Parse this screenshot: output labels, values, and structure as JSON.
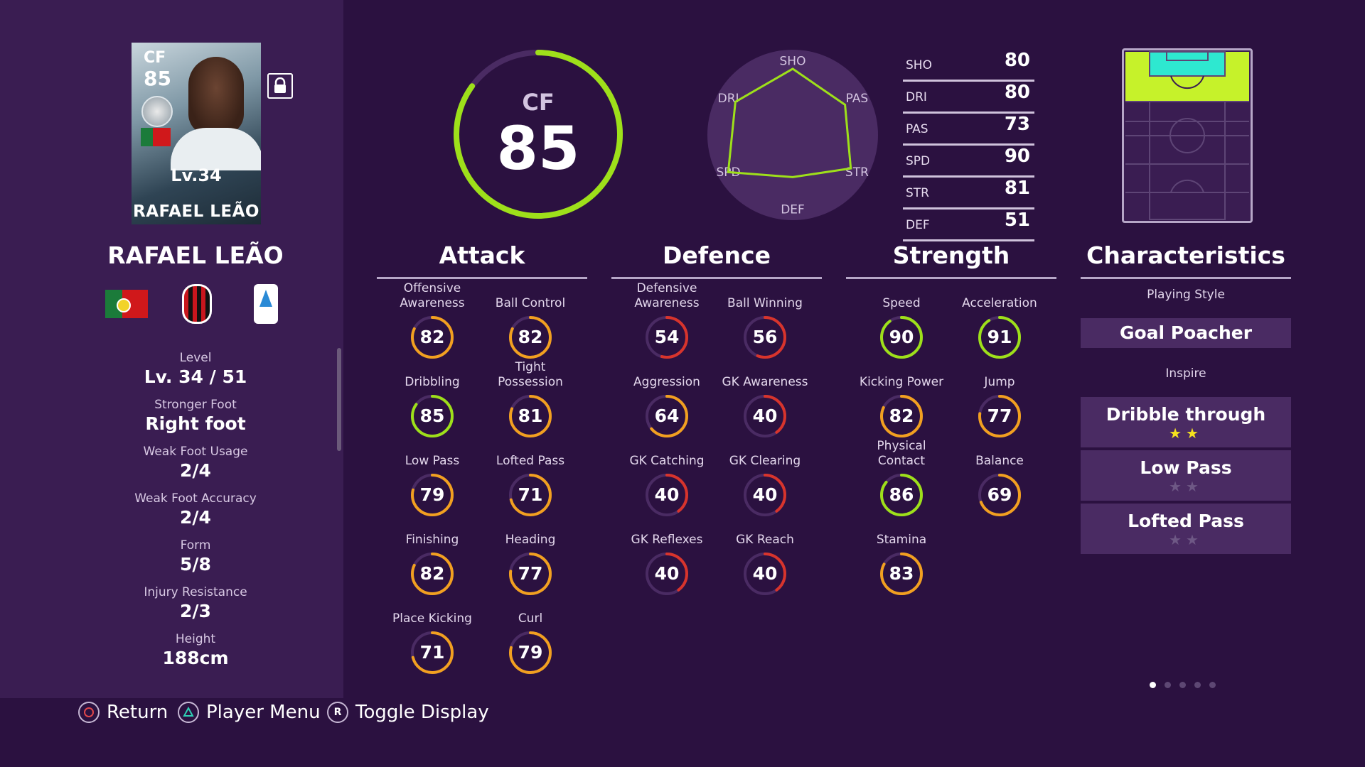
{
  "card": {
    "position": "CF",
    "overall": "85",
    "level": "Lv.34",
    "name": "RAFAEL LEÃO"
  },
  "player": {
    "name": "RAFAEL LEÃO"
  },
  "info": [
    {
      "label": "Level",
      "value": "Lv. 34 / 51"
    },
    {
      "label": "Stronger Foot",
      "value": "Right foot"
    },
    {
      "label": "Weak Foot Usage",
      "value": "2/4"
    },
    {
      "label": "Weak Foot Accuracy",
      "value": "2/4"
    },
    {
      "label": "Form",
      "value": "5/8"
    },
    {
      "label": "Injury Resistance",
      "value": "2/3"
    },
    {
      "label": "Height",
      "value": "188cm"
    }
  ],
  "overall_ring": {
    "position": "CF",
    "value": "85"
  },
  "radar": {
    "labels": [
      "SHO",
      "PAS",
      "STR",
      "DEF",
      "SPD",
      "DRI"
    ],
    "values": [
      80,
      73,
      81,
      51,
      90,
      80
    ]
  },
  "summary": [
    {
      "label": "SHO",
      "value": "80"
    },
    {
      "label": "DRI",
      "value": "80"
    },
    {
      "label": "PAS",
      "value": "73"
    },
    {
      "label": "SPD",
      "value": "90"
    },
    {
      "label": "STR",
      "value": "81"
    },
    {
      "label": "DEF",
      "value": "51"
    }
  ],
  "sections": {
    "attack": "Attack",
    "defence": "Defence",
    "strength": "Strength",
    "characteristics": "Characteristics"
  },
  "attack": [
    {
      "label": "Offensive Awareness",
      "value": 82
    },
    {
      "label": "Ball Control",
      "value": 82
    },
    {
      "label": "Dribbling",
      "value": 85
    },
    {
      "label": "Tight Possession",
      "value": 81
    },
    {
      "label": "Low Pass",
      "value": 79
    },
    {
      "label": "Lofted Pass",
      "value": 71
    },
    {
      "label": "Finishing",
      "value": 82
    },
    {
      "label": "Heading",
      "value": 77
    },
    {
      "label": "Place Kicking",
      "value": 71
    },
    {
      "label": "Curl",
      "value": 79
    }
  ],
  "defence": [
    {
      "label": "Defensive Awareness",
      "value": 54
    },
    {
      "label": "Ball Winning",
      "value": 56
    },
    {
      "label": "Aggression",
      "value": 64
    },
    {
      "label": "GK Awareness",
      "value": 40
    },
    {
      "label": "GK Catching",
      "value": 40
    },
    {
      "label": "GK Clearing",
      "value": 40
    },
    {
      "label": "GK Reflexes",
      "value": 40
    },
    {
      "label": "GK Reach",
      "value": 40
    }
  ],
  "strength": [
    {
      "label": "Speed",
      "value": 90
    },
    {
      "label": "Acceleration",
      "value": 91
    },
    {
      "label": "Kicking Power",
      "value": 82
    },
    {
      "label": "Jump",
      "value": 77
    },
    {
      "label": "Physical Contact",
      "value": 86
    },
    {
      "label": "Balance",
      "value": 69
    },
    {
      "label": "Stamina",
      "value": 83
    }
  ],
  "characteristics": {
    "playing_style_label": "Playing Style",
    "playing_style": "Goal Poacher",
    "inspire_label": "Inspire",
    "inspire": [
      {
        "name": "Dribble through",
        "stars": 2
      },
      {
        "name": "Low Pass",
        "stars": 0
      },
      {
        "name": "Lofted Pass",
        "stars": 0
      }
    ]
  },
  "pagination": {
    "pages": 5,
    "current": 1
  },
  "buttons": {
    "return": "Return",
    "player_menu": "Player Menu",
    "toggle_display": "Toggle Display",
    "toggle_key": "R"
  },
  "colors": {
    "green": "#9ee01a",
    "orange": "#f2a020",
    "red": "#d8342c",
    "yellow_green": "#d5dc24",
    "panel": "#3a1d52",
    "background": "#2b1140"
  }
}
